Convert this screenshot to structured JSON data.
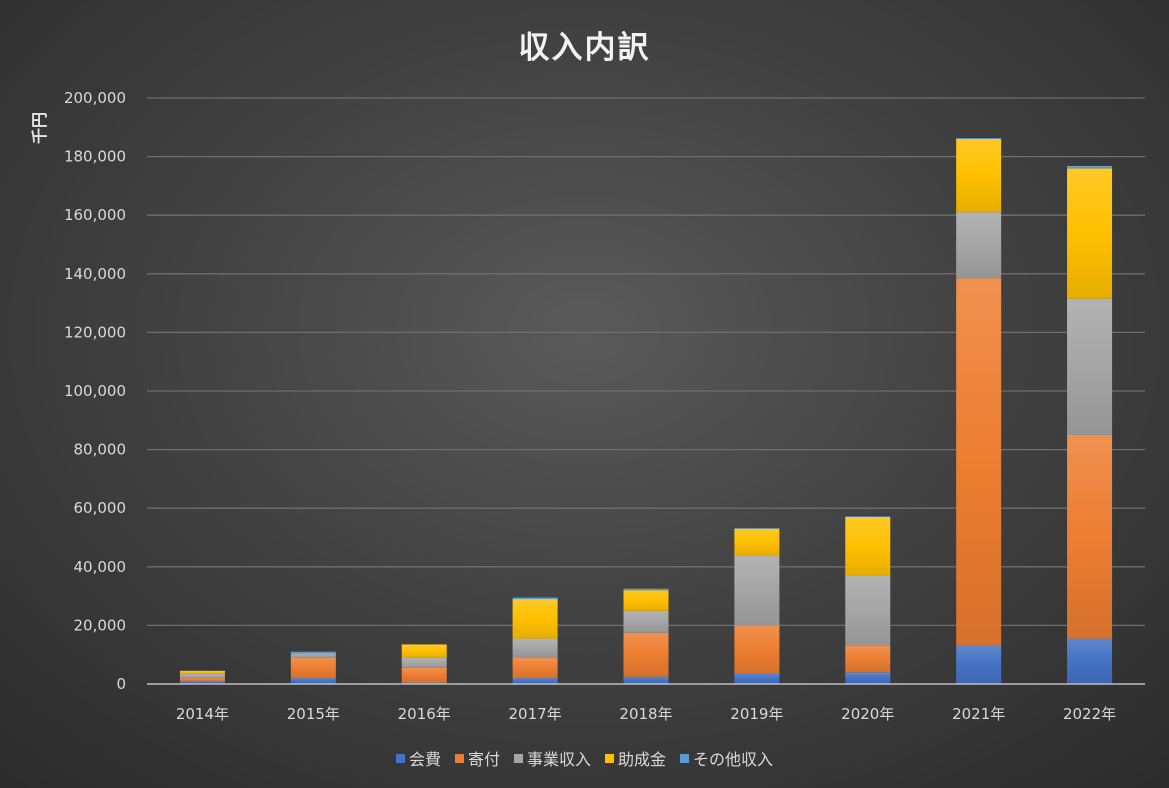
{
  "chart_data": {
    "type": "bar",
    "stacked": true,
    "title": "収入内訳",
    "ylabel": "千円",
    "xlabel": "",
    "ylim": [
      0,
      200000
    ],
    "y_ticks": [
      "0",
      "20,000",
      "40,000",
      "60,000",
      "80,000",
      "100,000",
      "120,000",
      "140,000",
      "160,000",
      "180,000",
      "200,000"
    ],
    "y_tick_values": [
      0,
      20000,
      40000,
      60000,
      80000,
      100000,
      120000,
      140000,
      160000,
      180000,
      200000
    ],
    "grid": true,
    "legend_position": "bottom",
    "categories": [
      "2014年",
      "2015年",
      "2016年",
      "2017年",
      "2018年",
      "2019年",
      "2020年",
      "2021年",
      "2022年"
    ],
    "series": [
      {
        "name": "会費",
        "color": "#4472C4",
        "values": [
          1000,
          2000,
          500,
          2000,
          2500,
          3500,
          4000,
          13000,
          15500
        ]
      },
      {
        "name": "寄付",
        "color": "#ED7D31",
        "values": [
          1000,
          7000,
          5000,
          7000,
          15000,
          16500,
          9000,
          125500,
          69500
        ]
      },
      {
        "name": "事業収入",
        "color": "#A5A5A5",
        "values": [
          1500,
          1500,
          3500,
          6500,
          7500,
          24000,
          24000,
          22500,
          46500
        ]
      },
      {
        "name": "助成金",
        "color": "#FFC000",
        "values": [
          1000,
          0,
          4500,
          13500,
          7000,
          9000,
          20000,
          25000,
          44500
        ]
      },
      {
        "name": "その他収入",
        "color": "#5B9BD5",
        "values": [
          0,
          500,
          0,
          500,
          500,
          200,
          200,
          300,
          800
        ]
      }
    ]
  }
}
